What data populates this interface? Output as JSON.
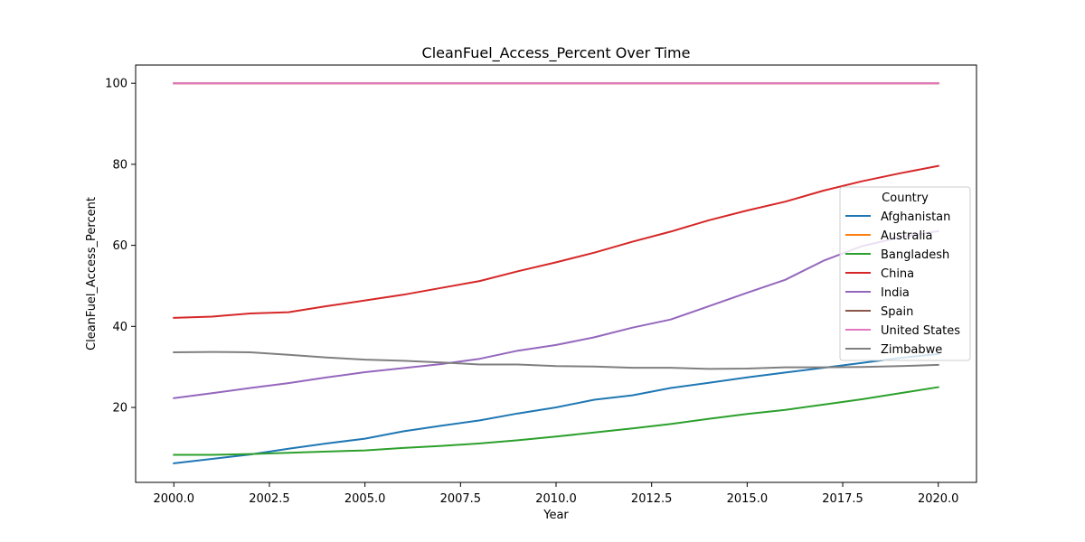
{
  "chart_data": {
    "type": "line",
    "title": "CleanFuel_Access_Percent Over Time",
    "xlabel": "Year",
    "ylabel": "CleanFuel_Access_Percent",
    "xlim": [
      1999,
      2021
    ],
    "ylim": [
      1.5,
      104.5
    ],
    "xticks": [
      2000.0,
      2002.5,
      2005.0,
      2007.5,
      2010.0,
      2012.5,
      2015.0,
      2017.5,
      2020.0
    ],
    "xtick_labels": [
      "2000.0",
      "2002.5",
      "2005.0",
      "2007.5",
      "2010.0",
      "2012.5",
      "2015.0",
      "2017.5",
      "2020.0"
    ],
    "yticks": [
      20,
      40,
      60,
      80,
      100
    ],
    "ytick_labels": [
      "20",
      "40",
      "60",
      "80",
      "100"
    ],
    "grid": false,
    "legend": {
      "title": "Country",
      "placement": "right"
    },
    "x": [
      2000,
      2001,
      2002,
      2003,
      2004,
      2005,
      2006,
      2007,
      2008,
      2009,
      2010,
      2011,
      2012,
      2013,
      2014,
      2015,
      2016,
      2017,
      2018,
      2019,
      2020
    ],
    "series": [
      {
        "name": "Afghanistan",
        "color": "#1f77b4",
        "values": [
          6.2,
          7.3,
          8.4,
          9.8,
          11.1,
          12.3,
          14.1,
          15.5,
          16.8,
          18.5,
          20.0,
          21.9,
          23.0,
          24.8,
          26.1,
          27.4,
          28.6,
          29.8,
          31.0,
          32.2,
          33.2
        ]
      },
      {
        "name": "Australia",
        "color": "#ff7f0e",
        "values": [
          100,
          100,
          100,
          100,
          100,
          100,
          100,
          100,
          100,
          100,
          100,
          100,
          100,
          100,
          100,
          100,
          100,
          100,
          100,
          100,
          100
        ]
      },
      {
        "name": "Bangladesh",
        "color": "#2ca02c",
        "values": [
          8.3,
          8.3,
          8.5,
          8.8,
          9.1,
          9.4,
          10.0,
          10.5,
          11.1,
          11.9,
          12.8,
          13.8,
          14.8,
          15.9,
          17.2,
          18.4,
          19.4,
          20.7,
          22.0,
          23.5,
          25.0
        ]
      },
      {
        "name": "China",
        "color": "#d62728",
        "values": [
          42.1,
          42.4,
          43.2,
          43.5,
          45.0,
          46.4,
          47.8,
          49.5,
          51.2,
          53.6,
          55.8,
          58.2,
          60.9,
          63.4,
          66.2,
          68.6,
          70.8,
          73.5,
          75.8,
          77.8,
          79.6
        ]
      },
      {
        "name": "India",
        "color": "#9467bd",
        "values": [
          22.3,
          23.5,
          24.8,
          26.0,
          27.4,
          28.7,
          29.7,
          30.7,
          32.0,
          34.0,
          35.4,
          37.3,
          39.7,
          41.7,
          45.0,
          48.3,
          51.5,
          56.2,
          59.8,
          62.0,
          63.5
        ]
      },
      {
        "name": "Spain",
        "color": "#8c564b",
        "values": [
          100,
          100,
          100,
          100,
          100,
          100,
          100,
          100,
          100,
          100,
          100,
          100,
          100,
          100,
          100,
          100,
          100,
          100,
          100,
          100,
          100
        ]
      },
      {
        "name": "United States",
        "color": "#e377c2",
        "values": [
          100,
          100,
          100,
          100,
          100,
          100,
          100,
          100,
          100,
          100,
          100,
          100,
          100,
          100,
          100,
          100,
          100,
          100,
          100,
          100,
          100
        ]
      },
      {
        "name": "Zimbabwe",
        "color": "#7f7f7f",
        "values": [
          33.6,
          33.7,
          33.6,
          33.0,
          32.3,
          31.8,
          31.5,
          31.1,
          30.6,
          30.6,
          30.2,
          30.1,
          29.8,
          29.8,
          29.5,
          29.6,
          29.9,
          29.9,
          30.0,
          30.2,
          30.5
        ]
      }
    ]
  }
}
